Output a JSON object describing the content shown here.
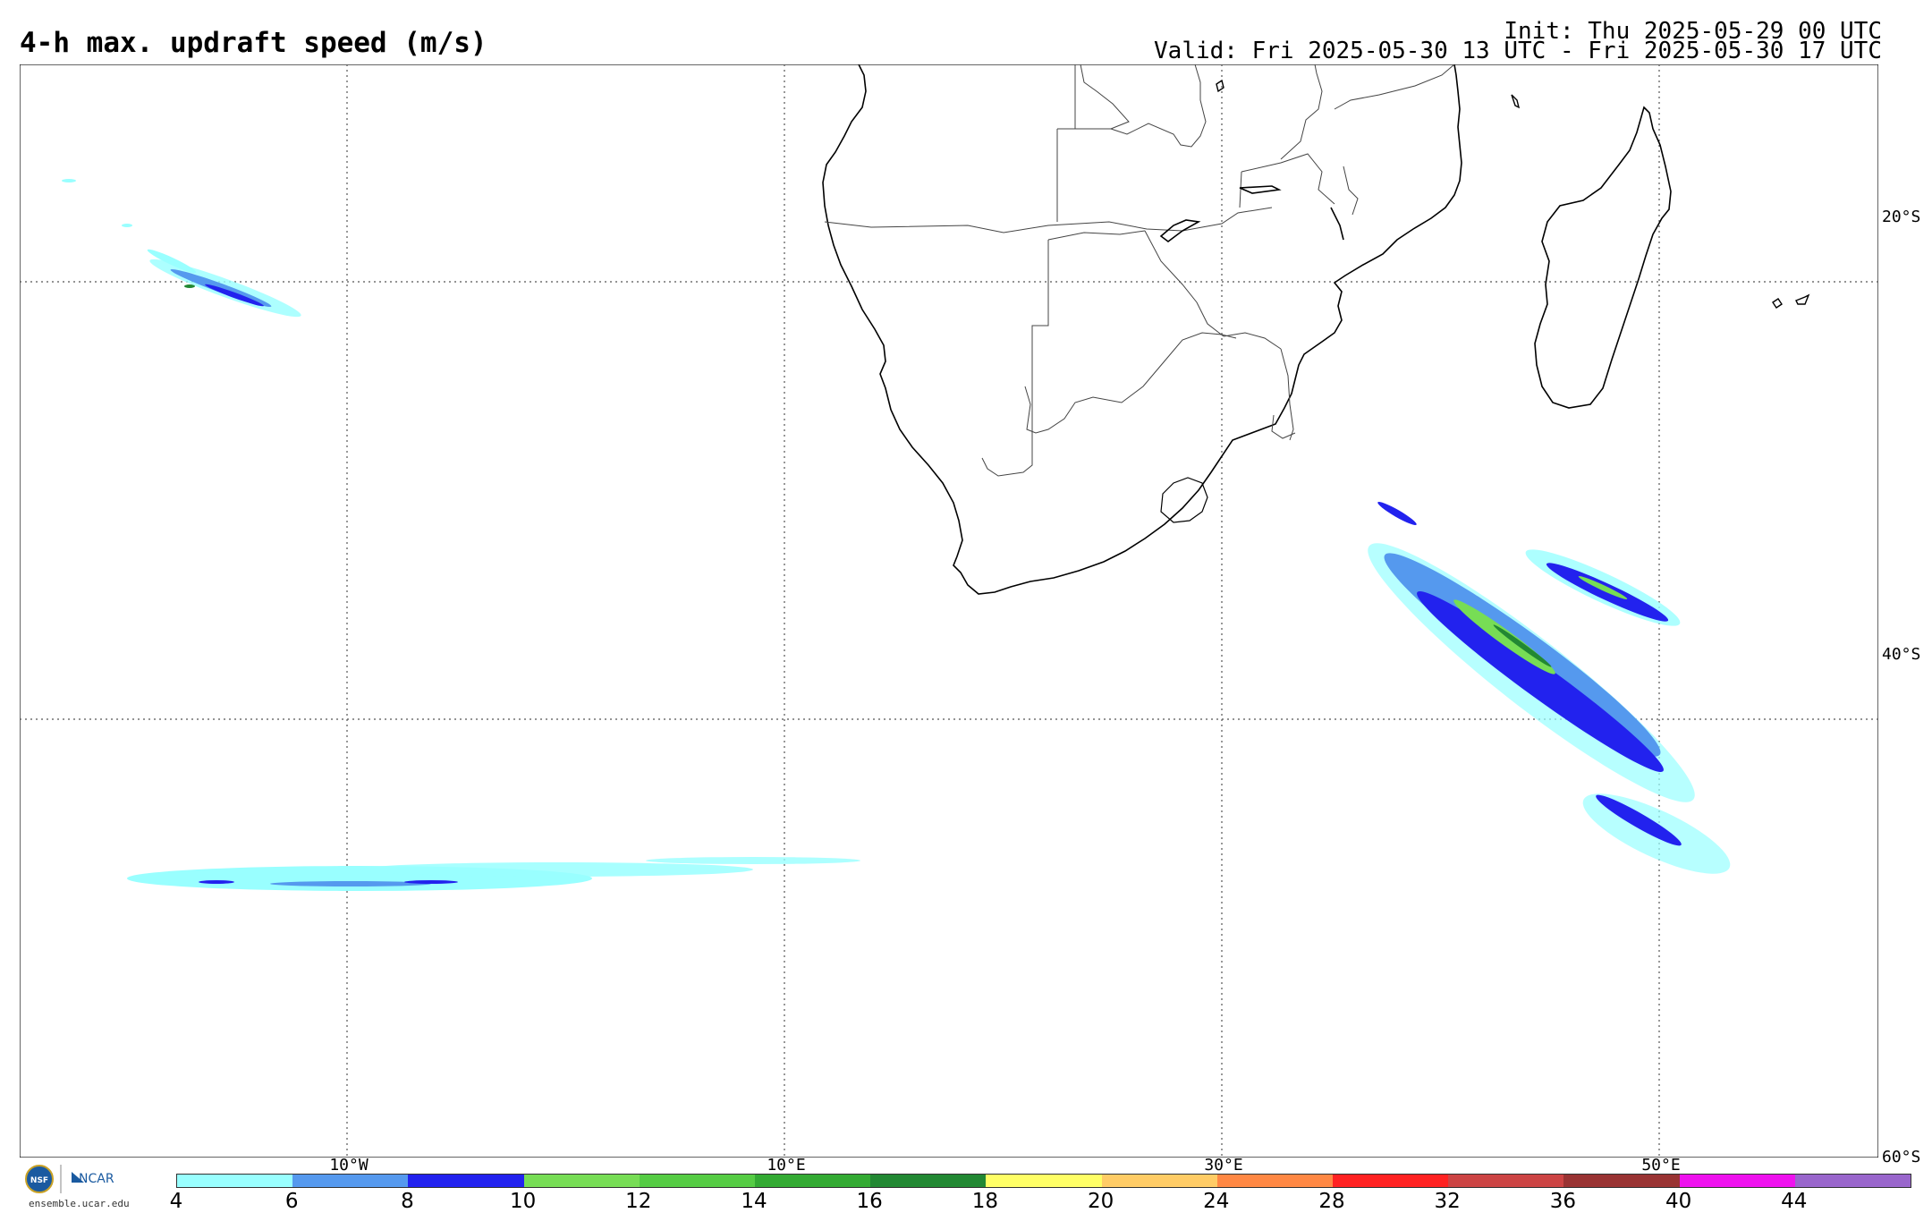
{
  "header": {
    "title": "4-h max. updraft speed (m/s)",
    "init": "Init: Thu 2025-05-29 00 UTC",
    "valid": "Valid: Fri 2025-05-30 13 UTC - Fri 2025-05-30 17 UTC"
  },
  "grid": {
    "lat_labels": [
      "20°S",
      "40°S",
      "60°S"
    ],
    "lon_labels": [
      "10°W",
      "10°E",
      "30°E",
      "50°E"
    ]
  },
  "colorbar": {
    "labels": [
      "4",
      "6",
      "8",
      "10",
      "12",
      "14",
      "16",
      "18",
      "20",
      "24",
      "28",
      "32",
      "36",
      "40",
      "44"
    ],
    "colors": [
      "#99ffff",
      "#5599ee",
      "#2222ee",
      "#77dd55",
      "#55cc44",
      "#33aa33",
      "#228833",
      "#ffff66",
      "#ffcc66",
      "#ff8844",
      "#ff2222",
      "#cc4444",
      "#993333",
      "#ee11ee",
      "#9966cc"
    ]
  },
  "footer": {
    "logo_nsf": "NSF",
    "logo_ncar": "NCAR",
    "site": "ensemble.ucar.edu"
  }
}
